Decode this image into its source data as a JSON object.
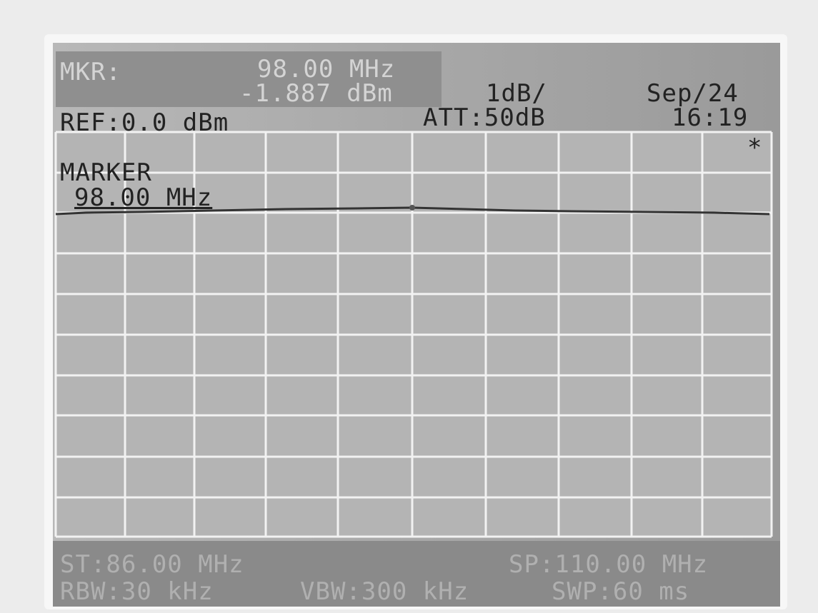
{
  "header": {
    "marker_label": "MKR:",
    "marker_freq": "98.00 MHz",
    "marker_level": "-1.887 dBm",
    "scale": "1dB/",
    "date": "Sep/24",
    "ref": "REF:0.0 dBm",
    "att": "ATT:50dB",
    "time": "16:19"
  },
  "screen": {
    "star": "*",
    "marker_title": "MARKER",
    "marker_freq": "98.00 MHz"
  },
  "footer": {
    "start": "ST:86.00 MHz",
    "stop": "SP:110.00 MHz",
    "rbw": "RBW:30 kHz",
    "vbw": "VBW:300 kHz",
    "sweep": "SWP:60 ms"
  }
}
